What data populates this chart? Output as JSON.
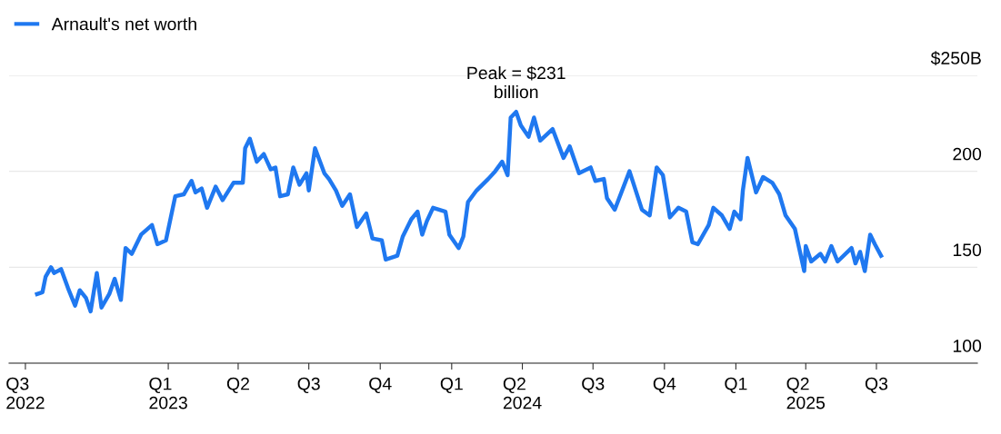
{
  "chart_data": {
    "type": "line",
    "x": [
      "2022-07-16",
      "2022-07-23",
      "2022-07-27",
      "2022-08-03",
      "2022-08-07",
      "2022-08-16",
      "2022-08-25",
      "2022-09-03",
      "2022-09-09",
      "2022-09-17",
      "2022-09-23",
      "2022-10-01",
      "2022-10-07",
      "2022-10-17",
      "2022-10-24",
      "2022-11-01",
      "2022-11-07",
      "2022-11-15",
      "2022-11-27",
      "2022-12-11",
      "2022-12-18",
      "2022-12-29",
      "2023-01-10",
      "2023-01-21",
      "2023-01-31",
      "2023-02-05",
      "2023-02-13",
      "2023-02-20",
      "2023-03-03",
      "2023-03-12",
      "2023-03-26",
      "2023-04-07",
      "2023-04-10",
      "2023-04-16",
      "2023-04-25",
      "2023-05-04",
      "2023-05-13",
      "2023-05-19",
      "2023-05-25",
      "2023-06-04",
      "2023-06-11",
      "2023-06-19",
      "2023-06-28",
      "2023-07-01",
      "2023-07-09",
      "2023-07-21",
      "2023-07-27",
      "2023-08-05",
      "2023-08-13",
      "2023-08-23",
      "2023-09-01",
      "2023-09-13",
      "2023-09-21",
      "2023-10-03",
      "2023-10-08",
      "2023-10-23",
      "2023-10-30",
      "2023-11-10",
      "2023-11-18",
      "2023-11-24",
      "2023-11-30",
      "2023-12-08",
      "2023-12-24",
      "2023-12-29",
      "2024-01-10",
      "2024-01-16",
      "2024-01-22",
      "2024-02-02",
      "2024-02-17",
      "2024-02-26",
      "2024-03-06",
      "2024-03-13",
      "2024-03-17",
      "2024-03-24",
      "2024-03-30",
      "2024-04-09",
      "2024-04-16",
      "2024-04-24",
      "2024-05-10",
      "2024-05-24",
      "2024-06-01",
      "2024-06-13",
      "2024-06-28",
      "2024-07-04",
      "2024-07-15",
      "2024-07-19",
      "2024-07-29",
      "2024-08-17",
      "2024-09-02",
      "2024-09-12",
      "2024-09-21",
      "2024-09-29",
      "2024-10-08",
      "2024-10-19",
      "2024-10-29",
      "2024-11-06",
      "2024-11-13",
      "2024-11-27",
      "2024-12-03",
      "2024-12-14",
      "2024-12-24",
      "2024-12-30",
      "2025-01-07",
      "2025-01-10",
      "2025-01-16",
      "2025-01-27",
      "2025-02-05",
      "2025-02-17",
      "2025-02-26",
      "2025-03-06",
      "2025-03-18",
      "2025-03-30",
      "2025-04-01",
      "2025-04-08",
      "2025-04-20",
      "2025-04-26",
      "2025-05-04",
      "2025-05-12",
      "2025-05-30",
      "2025-06-04",
      "2025-06-10",
      "2025-06-16",
      "2025-06-23",
      "2025-06-29",
      "2025-07-07"
    ],
    "series": [
      {
        "name": "Arnault's net worth",
        "color": "#1f78f0",
        "values": [
          136,
          137,
          145,
          150,
          147,
          149,
          139,
          130,
          138,
          134,
          127,
          147,
          129,
          136,
          144,
          133,
          160,
          157,
          167,
          172,
          162,
          164,
          187,
          188,
          195,
          189,
          191,
          181,
          192,
          185,
          194,
          194,
          212,
          217,
          205,
          209,
          201,
          202,
          187,
          188,
          202,
          193,
          199,
          190,
          212,
          199,
          196,
          190,
          182,
          188,
          171,
          178,
          165,
          164,
          154,
          156,
          166,
          175,
          179,
          167,
          174,
          181,
          179,
          167,
          160,
          166,
          184,
          190,
          196,
          200,
          205,
          198,
          228,
          231,
          224,
          218,
          228,
          216,
          222,
          207,
          213,
          199,
          202,
          195,
          196,
          186,
          180,
          200,
          180,
          177,
          202,
          198,
          176,
          181,
          179,
          163,
          162,
          172,
          181,
          177,
          170,
          179,
          175,
          190,
          207,
          189,
          197,
          194,
          188,
          177,
          170,
          148,
          161,
          153,
          157,
          153,
          161,
          153,
          160,
          152,
          158,
          148,
          167,
          162,
          156
        ]
      }
    ],
    "xlim": [
      "2022-06-10",
      "2025-11-08"
    ],
    "xticks": [
      {
        "value": "2022-07-01",
        "label": "Q3\n2022"
      },
      {
        "value": "2023-01-01",
        "label": "Q1\n2023"
      },
      {
        "value": "2023-04-01",
        "label": "Q2"
      },
      {
        "value": "2023-07-01",
        "label": "Q3"
      },
      {
        "value": "2023-10-01",
        "label": "Q4"
      },
      {
        "value": "2024-01-01",
        "label": "Q1"
      },
      {
        "value": "2024-04-01",
        "label": "Q2\n2024"
      },
      {
        "value": "2024-07-01",
        "label": "Q3"
      },
      {
        "value": "2024-10-01",
        "label": "Q4"
      },
      {
        "value": "2025-01-01",
        "label": "Q1"
      },
      {
        "value": "2025-04-01",
        "label": "Q2\n2025"
      },
      {
        "value": "2025-07-01",
        "label": "Q3"
      }
    ],
    "ylim": [
      100,
      250
    ],
    "yticks": [
      100,
      150,
      200,
      {
        "value": 250,
        "label": "$250B"
      }
    ],
    "grid": "y",
    "legend": "top left",
    "marker": "none",
    "line_style": "solid",
    "annotations": [
      {
        "text": "Peak = $231\nbillion",
        "x": "2024-03-24",
        "y": 231
      }
    ]
  }
}
